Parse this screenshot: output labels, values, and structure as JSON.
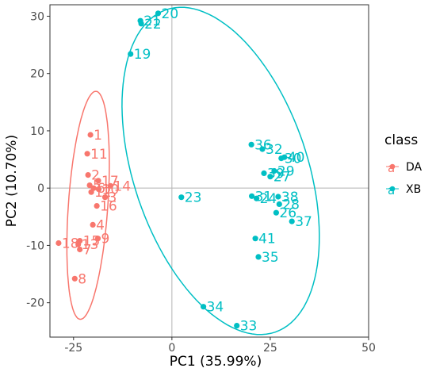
{
  "chart_data": {
    "type": "scatter",
    "xlabel": "PC1 (35.99%)",
    "ylabel": "PC2 (10.70%)",
    "xlim": [
      -31,
      50
    ],
    "ylim": [
      -26,
      32
    ],
    "xticks": [
      -25,
      0,
      25,
      50
    ],
    "yticks": [
      -20,
      -10,
      0,
      10,
      20,
      30
    ],
    "xtick_labels": [
      "-25",
      "0",
      "25",
      "50"
    ],
    "ytick_labels": [
      "-20",
      "-10",
      "0",
      "10",
      "20",
      "30"
    ],
    "grid": true,
    "legend": {
      "title": "class",
      "position": "right",
      "key_glyph": "a",
      "entries": [
        {
          "name": "DA",
          "color": "#F8766D"
        },
        {
          "name": "XB",
          "color": "#00BFC4"
        }
      ]
    },
    "series": [
      {
        "name": "DA",
        "color": "#F8766D",
        "points": [
          {
            "label": "1",
            "x": -20.7,
            "y": 9.3
          },
          {
            "label": "11",
            "x": -21.5,
            "y": 6.0
          },
          {
            "label": "2",
            "x": -21.3,
            "y": 2.3
          },
          {
            "label": "17",
            "x": -18.7,
            "y": 1.3
          },
          {
            "label": "14",
            "x": -15.6,
            "y": 0.4
          },
          {
            "label": "5",
            "x": -20.9,
            "y": 0.5
          },
          {
            "label": "6",
            "x": -19.9,
            "y": 0.0
          },
          {
            "label": "10",
            "x": -18.6,
            "y": -0.2
          },
          {
            "label": "12",
            "x": -20.5,
            "y": -0.7
          },
          {
            "label": "3",
            "x": -17.0,
            "y": -1.6
          },
          {
            "label": "16",
            "x": -19.1,
            "y": -3.1
          },
          {
            "label": "4",
            "x": -20.1,
            "y": -6.4
          },
          {
            "label": "9",
            "x": -18.8,
            "y": -8.8
          },
          {
            "label": "15",
            "x": -23.4,
            "y": -9.2
          },
          {
            "label": "18",
            "x": -28.8,
            "y": -9.6
          },
          {
            "label": "13",
            "x": -23.8,
            "y": -9.8
          },
          {
            "label": "7",
            "x": -23.4,
            "y": -10.7
          },
          {
            "label": "8",
            "x": -24.7,
            "y": -15.8
          }
        ],
        "ellipse": {
          "cx": -21.3,
          "cy": -3.0,
          "rx": 20.0,
          "ry": 5.0,
          "angle": 84
        }
      },
      {
        "name": "XB",
        "color": "#00BFC4",
        "points": [
          {
            "label": "20",
            "x": -3.5,
            "y": 30.5
          },
          {
            "label": "21",
            "x": -8.0,
            "y": 29.2
          },
          {
            "label": "22",
            "x": -7.8,
            "y": 28.7
          },
          {
            "label": "19",
            "x": -10.5,
            "y": 23.4
          },
          {
            "label": "23",
            "x": 2.4,
            "y": -1.6
          },
          {
            "label": "36",
            "x": 20.2,
            "y": 7.6
          },
          {
            "label": "32",
            "x": 23.0,
            "y": 6.8
          },
          {
            "label": "30",
            "x": 27.8,
            "y": 5.2
          },
          {
            "label": "40",
            "x": 28.6,
            "y": 5.4
          },
          {
            "label": "29",
            "x": 26.0,
            "y": 3.0
          },
          {
            "label": "39",
            "x": 23.4,
            "y": 2.6
          },
          {
            "label": "27",
            "x": 25.0,
            "y": 2.0
          },
          {
            "label": "31",
            "x": 20.3,
            "y": -1.4
          },
          {
            "label": "24",
            "x": 21.5,
            "y": -1.8
          },
          {
            "label": "38",
            "x": 27.0,
            "y": -1.5
          },
          {
            "label": "28",
            "x": 27.3,
            "y": -2.8
          },
          {
            "label": "26",
            "x": 26.5,
            "y": -4.3
          },
          {
            "label": "37",
            "x": 30.5,
            "y": -5.8
          },
          {
            "label": "41",
            "x": 21.2,
            "y": -8.8
          },
          {
            "label": "35",
            "x": 22.0,
            "y": -12.0
          },
          {
            "label": "34",
            "x": 8.0,
            "y": -20.7
          },
          {
            "label": "33",
            "x": 16.5,
            "y": -24.0
          }
        ],
        "ellipse": {
          "cx": 12.4,
          "cy": 3.0,
          "rx": 32.0,
          "ry": 20.5,
          "angle": -54
        }
      }
    ]
  }
}
